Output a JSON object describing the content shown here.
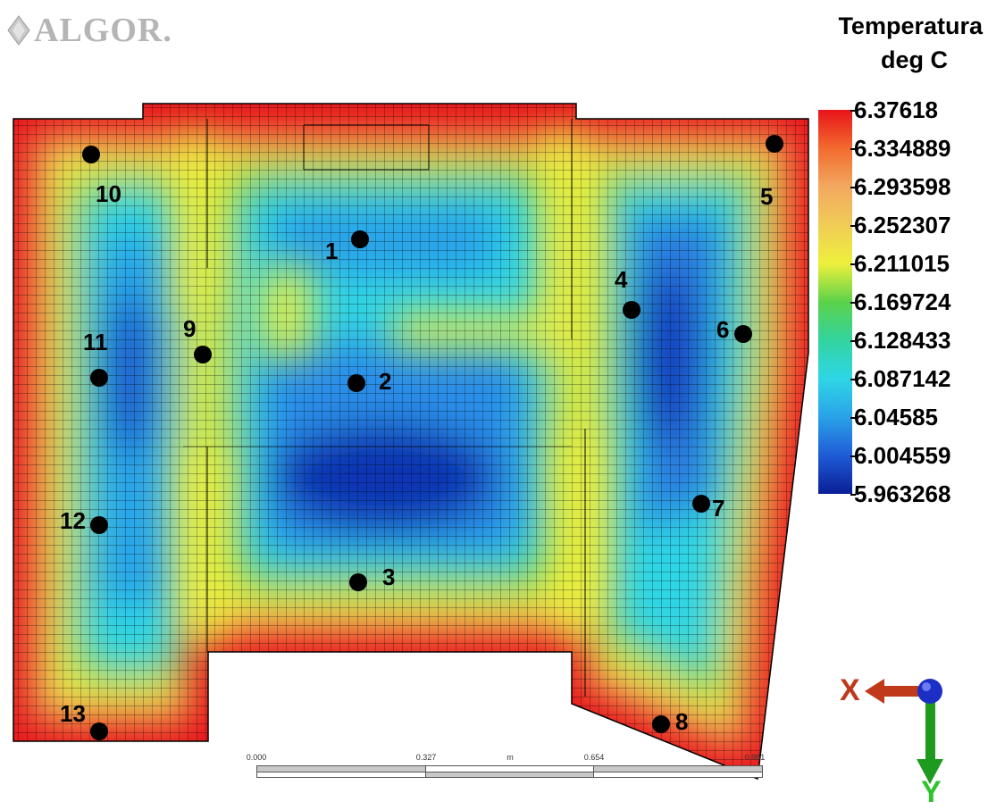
{
  "logo": {
    "text": "ALGOR."
  },
  "legend": {
    "title": "Temperatura",
    "unit": "deg C",
    "ticks": [
      "6.37618",
      "6.334889",
      "6.293598",
      "6.252307",
      "6.211015",
      "6.169724",
      "6.128433",
      "6.087142",
      "6.04585",
      "6.004559",
      "5.963268"
    ]
  },
  "points": [
    {
      "label": "1"
    },
    {
      "label": "2"
    },
    {
      "label": "3"
    },
    {
      "label": "4"
    },
    {
      "label": "5"
    },
    {
      "label": "6"
    },
    {
      "label": "7"
    },
    {
      "label": "8"
    },
    {
      "label": "9"
    },
    {
      "label": "10"
    },
    {
      "label": "11"
    },
    {
      "label": "12"
    },
    {
      "label": "13"
    }
  ],
  "scale_bar": {
    "ticks": [
      "0.000",
      "0.327",
      "m",
      "0.654",
      "0.981"
    ]
  },
  "axes": {
    "x_label": "X",
    "y_label": "Y"
  },
  "colors": {
    "hot": "#e8141a",
    "warm": "#f0a860",
    "mid": "#eef03c",
    "green": "#5cd24a",
    "cyan": "#2ed6e6",
    "blue": "#2a8ee8",
    "cold": "#0a1e96"
  }
}
